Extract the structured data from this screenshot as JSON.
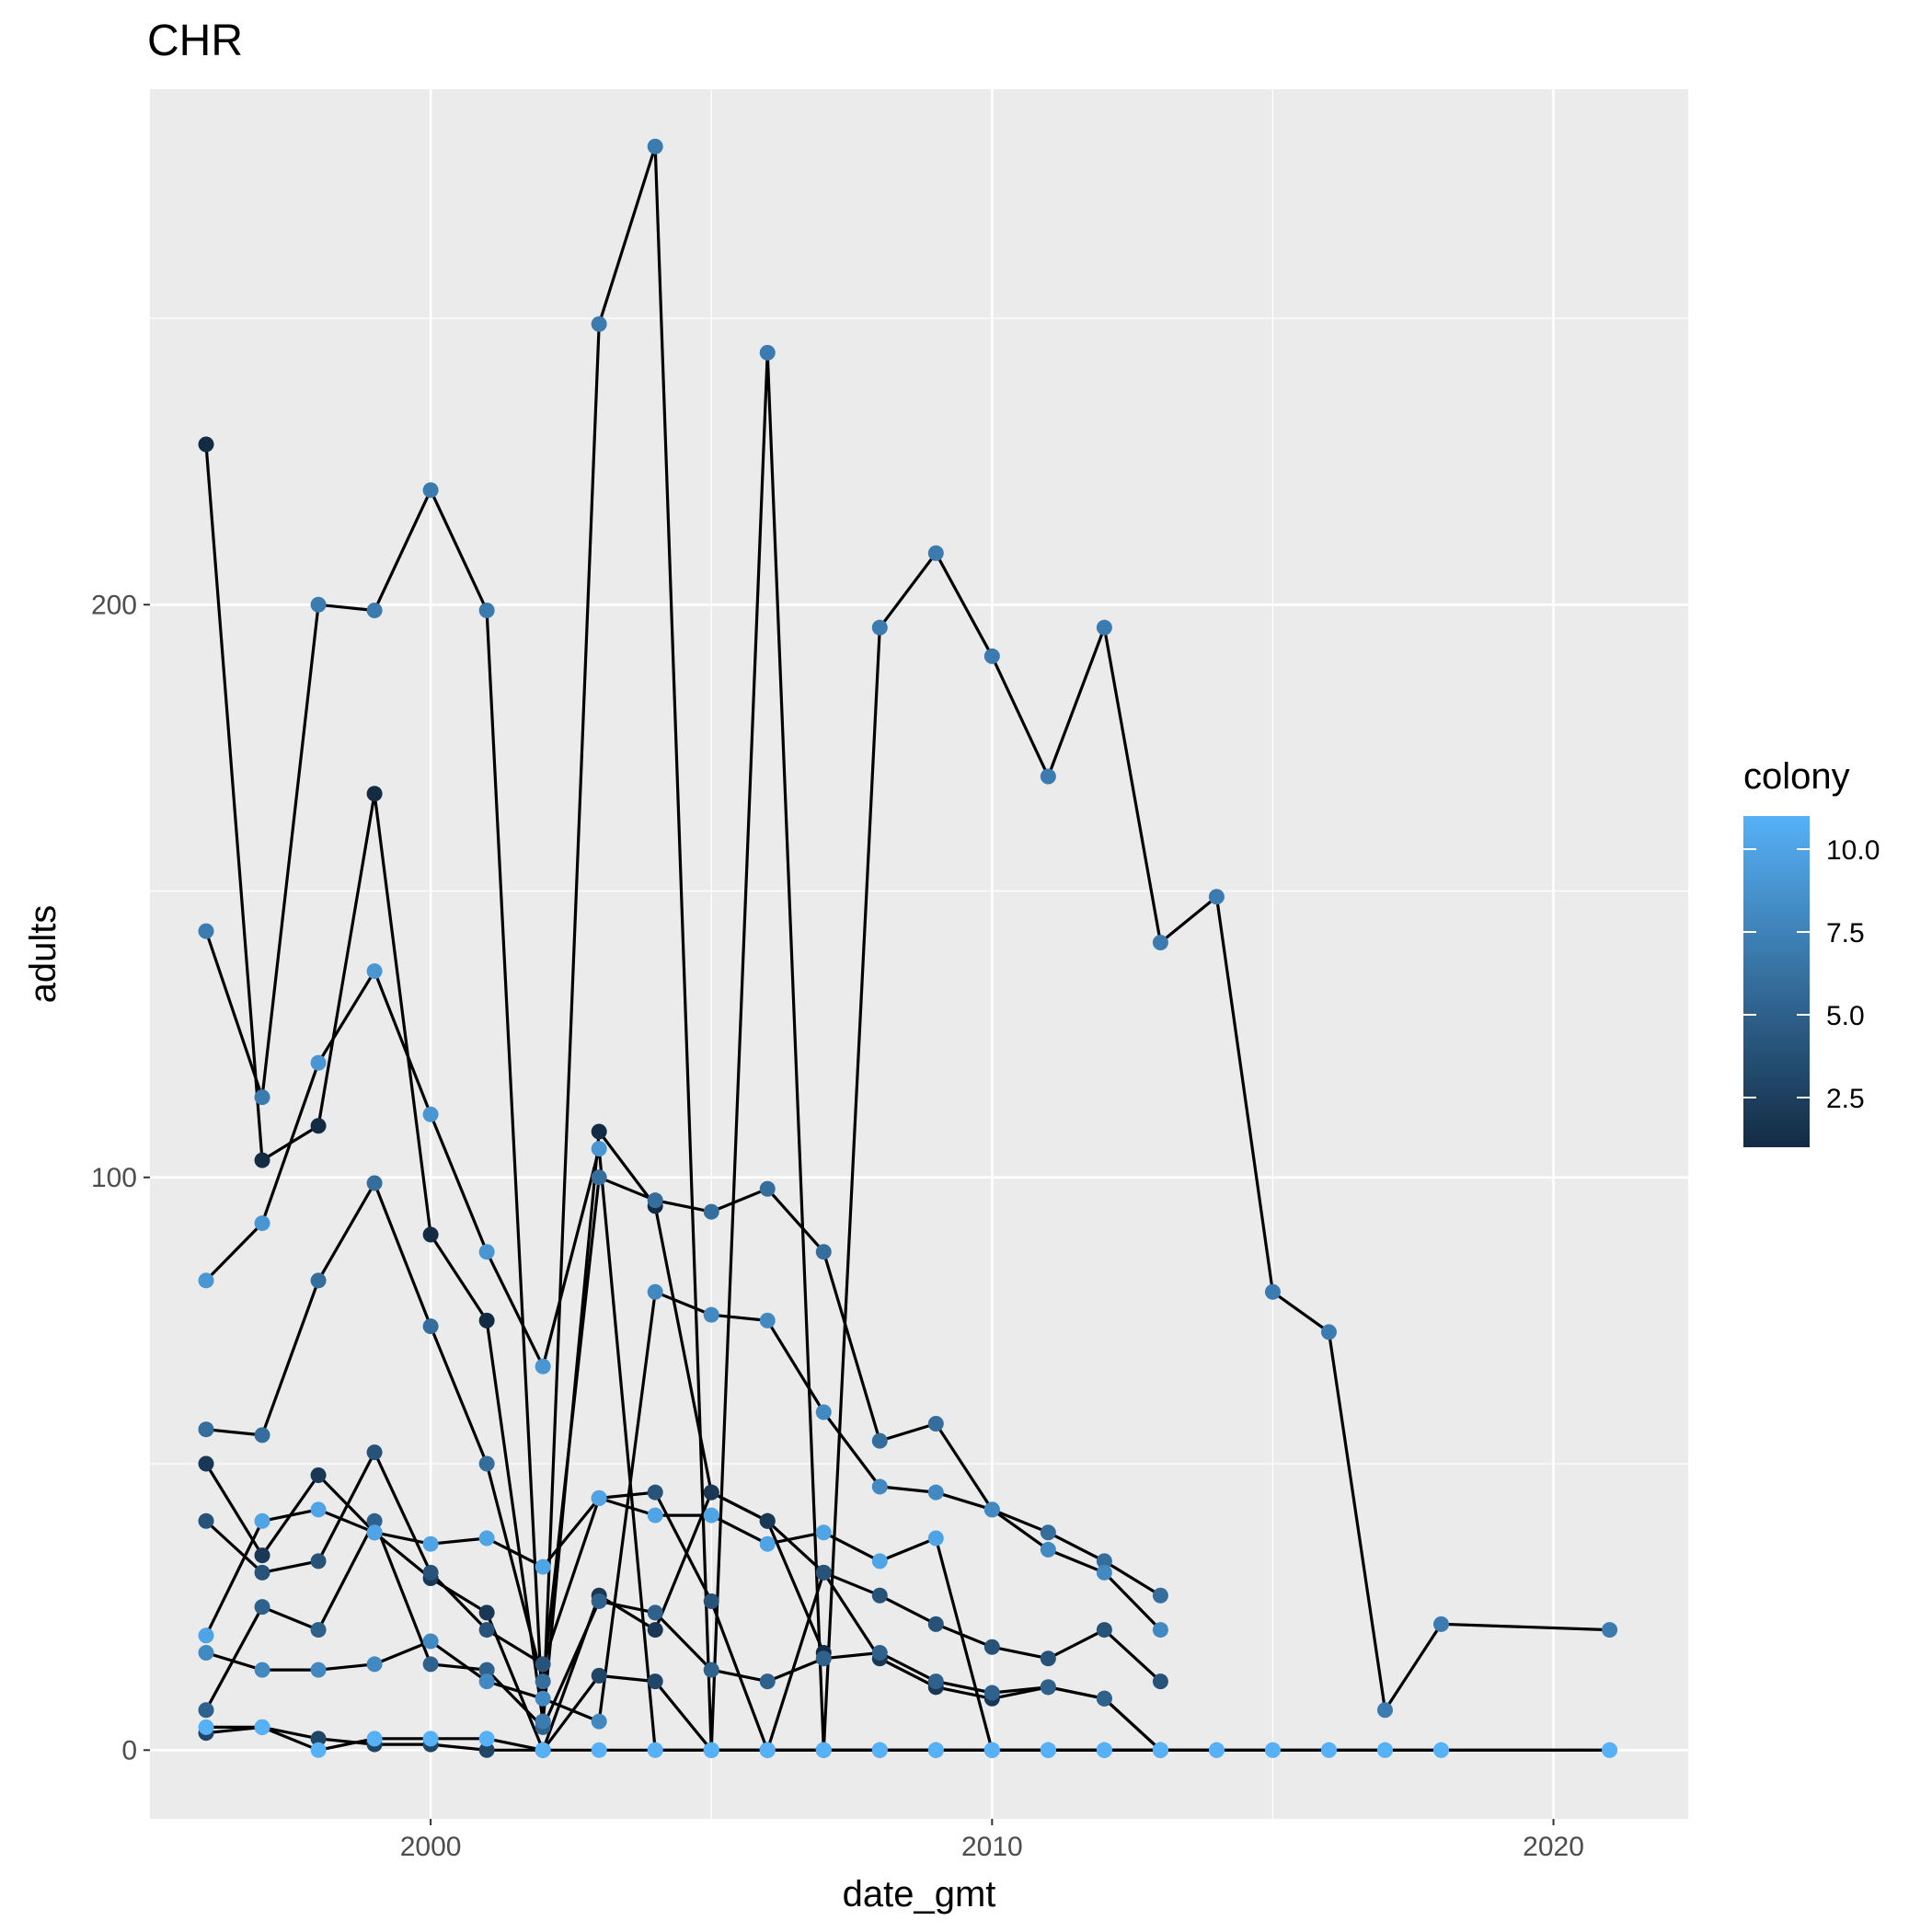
{
  "chart_data": {
    "type": "line",
    "title": "CHR",
    "xlabel": "date_gmt",
    "ylabel": "adults",
    "xlim": [
      1995,
      2022.4
    ],
    "ylim": [
      -12,
      290
    ],
    "x_ticks": [
      2000,
      2010,
      2020
    ],
    "y_ticks": [
      0,
      100,
      200
    ],
    "grid": true,
    "legend": {
      "title": "colony",
      "position": "right",
      "type": "colorbar",
      "range": [
        1,
        11
      ],
      "ticks": [
        2.5,
        5.0,
        7.5,
        10.0
      ],
      "tick_labels": [
        "2.5",
        "5.0",
        "7.5",
        "10.0"
      ],
      "color_low": "#132b43",
      "color_high": "#56b1f7"
    },
    "colors": {
      "panel_background": "#ebebeb",
      "grid_line": "#ffffff",
      "line": "#000000",
      "axis_text": "#4d4d4d"
    },
    "series": [
      {
        "colony": 1,
        "x": [
          1996,
          1997,
          1998,
          1999,
          2000,
          2001,
          2002,
          2003,
          2004,
          2005,
          2006,
          2007
        ],
        "y": [
          228,
          103,
          109,
          167,
          90,
          75,
          5,
          108,
          95,
          45,
          40,
          17
        ]
      },
      {
        "colony": 2,
        "x": [
          1996,
          1997,
          1998,
          1999,
          2000,
          2001,
          2002,
          2003,
          2004,
          2005,
          2006,
          2007,
          2008,
          2009,
          2010,
          2011,
          2012,
          2013
        ],
        "y": [
          50,
          34,
          48,
          38,
          30,
          24,
          0,
          27,
          21,
          45,
          40,
          31,
          16,
          11,
          9,
          11,
          9,
          0
        ]
      },
      {
        "colony": 3,
        "x": [
          1996,
          1997,
          1998,
          1999,
          2000,
          2001,
          2002,
          2003,
          2004,
          2005,
          2006,
          2007,
          2008,
          2009,
          2010,
          2011,
          2012,
          2013
        ],
        "y": [
          3,
          4,
          2,
          1,
          1,
          0,
          0,
          13,
          12,
          0,
          0,
          0,
          0,
          0,
          0,
          0,
          0,
          0
        ]
      },
      {
        "colony": 4,
        "x": [
          1996,
          1997,
          1998,
          1999,
          2000,
          2001,
          2002,
          2003,
          2004,
          2005,
          2006,
          2007,
          2008,
          2009,
          2010,
          2011,
          2012,
          2013
        ],
        "y": [
          40,
          31,
          33,
          52,
          31,
          21,
          15,
          44,
          45,
          26,
          0,
          31,
          27,
          22,
          18,
          16,
          21,
          12
        ]
      },
      {
        "colony": 5,
        "x": [
          1996,
          1997,
          1998,
          1999,
          2000,
          2001,
          2002,
          2003,
          2004,
          2005,
          2006,
          2007,
          2008,
          2009,
          2010,
          2011,
          2012,
          2013
        ],
        "y": [
          7,
          25,
          21,
          40,
          15,
          14,
          4,
          26,
          24,
          14,
          12,
          16,
          17,
          12,
          10,
          11,
          9,
          0
        ]
      },
      {
        "colony": 6,
        "x": [
          1996,
          1997,
          1998,
          1999,
          2000,
          2001,
          2002,
          2003,
          2004,
          2005,
          2006,
          2007,
          2008,
          2009,
          2010,
          2011,
          2012,
          2013
        ],
        "y": [
          56,
          55,
          82,
          99,
          74,
          50,
          12,
          100,
          96,
          94,
          98,
          87,
          54,
          57,
          42,
          38,
          33,
          27
        ]
      },
      {
        "colony": 7,
        "x": [
          1996,
          1997,
          1998,
          1999,
          2000,
          2001,
          2002,
          2003,
          2004,
          2005,
          2006,
          2007,
          2008,
          2009,
          2010,
          2011,
          2012,
          2013,
          2014,
          2015,
          2016,
          2017,
          2018,
          2021
        ],
        "y": [
          143,
          114,
          200,
          199,
          220,
          199,
          5,
          249,
          280,
          0,
          244,
          0,
          196,
          209,
          191,
          170,
          196,
          141,
          149,
          80,
          73,
          7,
          22,
          21
        ]
      },
      {
        "colony": 8,
        "x": [
          1996,
          1997,
          1998,
          1999,
          2000,
          2001,
          2002,
          2003,
          2004,
          2005,
          2006,
          2007,
          2008,
          2009,
          2010,
          2011,
          2012,
          2013
        ],
        "y": [
          17,
          14,
          14,
          15,
          19,
          12,
          9,
          5,
          80,
          76,
          75,
          59,
          46,
          45,
          42,
          35,
          31,
          21
        ]
      },
      {
        "colony": 9,
        "x": [
          1996,
          1997,
          1998,
          1999,
          2000,
          2001,
          2002,
          2003,
          2004,
          2005,
          2006,
          2007,
          2008,
          2009,
          2010,
          2011,
          2012,
          2013,
          2014
        ],
        "y": [
          82,
          92,
          120,
          136,
          111,
          87,
          67,
          105,
          0,
          0,
          0,
          0,
          0,
          0,
          0,
          0,
          0,
          0,
          0
        ]
      },
      {
        "colony": 10,
        "x": [
          1996,
          1997,
          1998,
          1999,
          2000,
          2001,
          2002,
          2003,
          2004,
          2005,
          2006,
          2007,
          2008,
          2009,
          2010,
          2011,
          2012,
          2013,
          2014,
          2015,
          2016,
          2017,
          2018,
          2021
        ],
        "y": [
          20,
          40,
          42,
          38,
          36,
          37,
          32,
          44,
          41,
          41,
          36,
          38,
          33,
          37,
          0,
          0,
          0,
          0,
          0,
          0,
          0,
          0,
          0,
          0
        ]
      },
      {
        "colony": 11,
        "x": [
          1996,
          1997,
          1998,
          1999,
          2000,
          2001,
          2002,
          2003,
          2004,
          2005,
          2006,
          2007,
          2008,
          2009,
          2010,
          2011,
          2012,
          2013,
          2014,
          2015,
          2016,
          2017,
          2018,
          2021
        ],
        "y": [
          4,
          4,
          0,
          2,
          2,
          2,
          0,
          0,
          0,
          0,
          0,
          0,
          0,
          0,
          0,
          0,
          0,
          0,
          0,
          0,
          0,
          0,
          0,
          0
        ]
      }
    ]
  }
}
